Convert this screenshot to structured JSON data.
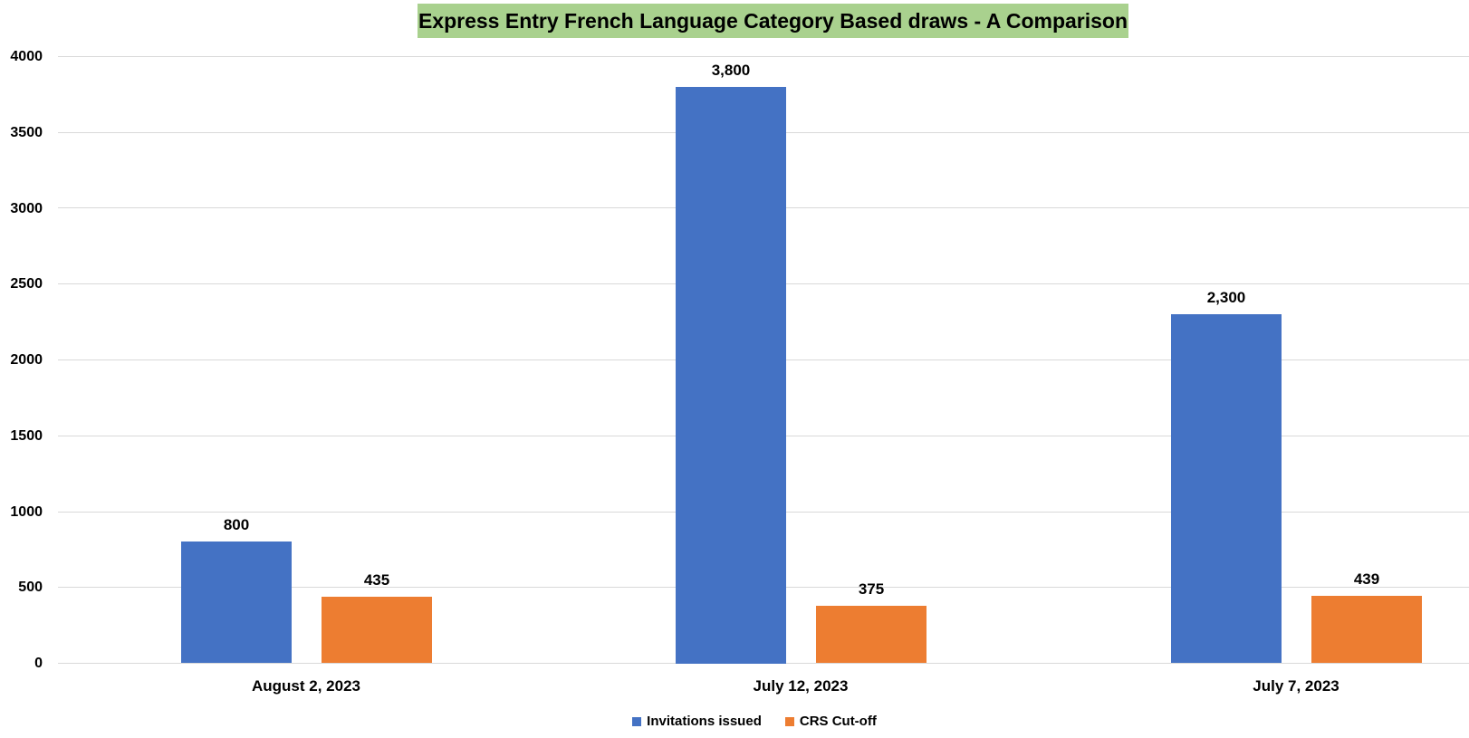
{
  "chart_data": {
    "type": "bar",
    "title": "Express Entry French Language Category Based draws - A Comparison",
    "xlabel": "",
    "ylabel": "",
    "ylim": [
      0,
      4000
    ],
    "yticks": [
      0,
      500,
      1000,
      1500,
      2000,
      2500,
      3000,
      3500,
      4000
    ],
    "grid": true,
    "legend_position": "bottom",
    "categories": [
      "August 2, 2023",
      "July 12, 2023",
      "July 7, 2023"
    ],
    "series": [
      {
        "name": "Invitations issued",
        "color": "#4472c4",
        "values": [
          800,
          3800,
          2300
        ],
        "labels": [
          "800",
          "3,800",
          "2,300"
        ]
      },
      {
        "name": "CRS Cut-off",
        "color": "#ed7d31",
        "values": [
          435,
          375,
          439
        ],
        "labels": [
          "435",
          "375",
          "439"
        ]
      }
    ]
  },
  "title_bg": "#a9d18e"
}
